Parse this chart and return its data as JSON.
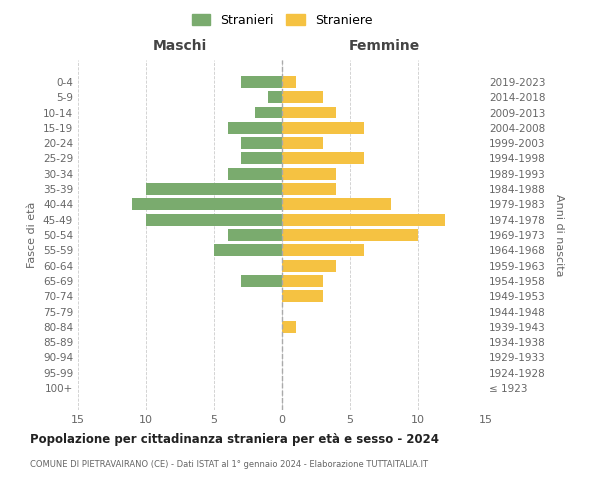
{
  "age_groups": [
    "100+",
    "95-99",
    "90-94",
    "85-89",
    "80-84",
    "75-79",
    "70-74",
    "65-69",
    "60-64",
    "55-59",
    "50-54",
    "45-49",
    "40-44",
    "35-39",
    "30-34",
    "25-29",
    "20-24",
    "15-19",
    "10-14",
    "5-9",
    "0-4"
  ],
  "birth_years": [
    "≤ 1923",
    "1924-1928",
    "1929-1933",
    "1934-1938",
    "1939-1943",
    "1944-1948",
    "1949-1953",
    "1954-1958",
    "1959-1963",
    "1964-1968",
    "1969-1973",
    "1974-1978",
    "1979-1983",
    "1984-1988",
    "1989-1993",
    "1994-1998",
    "1999-2003",
    "2004-2008",
    "2009-2013",
    "2014-2018",
    "2019-2023"
  ],
  "males": [
    0,
    0,
    0,
    0,
    0,
    0,
    0,
    3,
    0,
    5,
    4,
    10,
    11,
    10,
    4,
    3,
    3,
    4,
    2,
    1,
    3
  ],
  "females": [
    0,
    0,
    0,
    0,
    1,
    0,
    3,
    3,
    4,
    6,
    10,
    12,
    8,
    4,
    4,
    6,
    3,
    6,
    4,
    3,
    1
  ],
  "male_color": "#7aab6e",
  "female_color": "#f5c242",
  "xlabel_left": "Maschi",
  "xlabel_right": "Femmine",
  "ylabel_left": "Fasce di età",
  "ylabel_right": "Anni di nascita",
  "legend_male": "Stranieri",
  "legend_female": "Straniere",
  "title": "Popolazione per cittadinanza straniera per età e sesso - 2024",
  "subtitle": "COMUNE DI PIETRAVAIRANO (CE) - Dati ISTAT al 1° gennaio 2024 - Elaborazione TUTTAITALIA.IT",
  "xlim": 15,
  "background_color": "#ffffff",
  "grid_color": "#cccccc"
}
